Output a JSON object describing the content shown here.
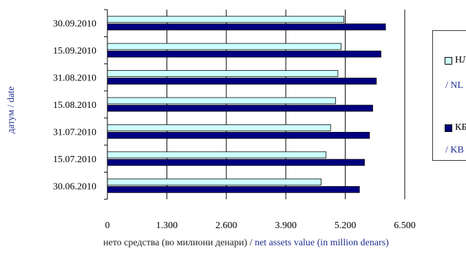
{
  "chart_data": {
    "type": "bar",
    "orientation": "horizontal",
    "categories": [
      "30.06.2010",
      "15.07.2010",
      "31.07.2010",
      "15.08.2010",
      "31.08.2010",
      "15.09.2010",
      "30.09.2010"
    ],
    "series": [
      {
        "name_mk": "НЛ",
        "name_en": "NL",
        "color": "#ccffff",
        "values": [
          4670,
          4780,
          4880,
          4990,
          5040,
          5110,
          5170
        ]
      },
      {
        "name_mk": "КБ",
        "name_en": "KB",
        "color": "#000080",
        "values": [
          5510,
          5620,
          5730,
          5800,
          5880,
          5980,
          6080
        ]
      }
    ],
    "xticks": [
      "0",
      "1.300",
      "2.600",
      "3.900",
      "5.200",
      "6.500"
    ],
    "xlim": [
      0,
      6500
    ],
    "ylabel_mk": "датум",
    "ylabel_en": "date",
    "xlabel_mk": "нето средства (во милиони денари)",
    "xlabel_en": "net assets value (in million denars)",
    "grid": "vertical",
    "legend": "right"
  }
}
